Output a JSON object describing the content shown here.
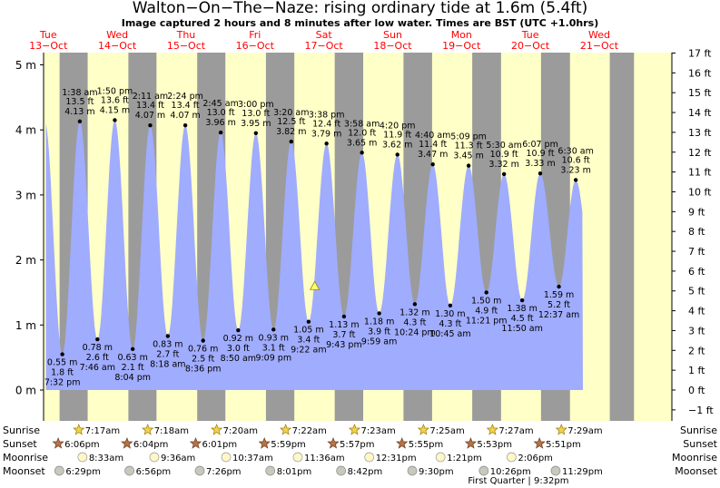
{
  "page": {
    "title": "Walton−On−The−Naze: rising  ordinary tide at 1.6m (5.4ft)",
    "subtitle": "Image captured 2 hours and 8 minutes after low water. Times are BST (UTC +1.0hrs)"
  },
  "colors": {
    "tide_fill": "#a0acfd",
    "day_band": "#ffffc8",
    "night_band": "#9b9b9b",
    "day_header": "#ff0000",
    "current_marker": "#ffff66"
  },
  "chart_data": {
    "type": "area",
    "title": "Walton−On−The−Naze: rising  ordinary tide at 1.6m (5.4ft)",
    "xlabel": "",
    "ylabel": "",
    "left_axis": {
      "unit": "m",
      "ylim": [
        -0.5,
        5.3
      ],
      "ticks": [
        "5 m",
        "4 m",
        "3 m",
        "2 m",
        "1 m",
        "0 m"
      ],
      "tick_values": [
        5,
        4,
        3,
        2,
        1,
        0
      ]
    },
    "right_axis": {
      "unit": "ft",
      "ticks": [
        "17 ft",
        "16 ft",
        "15 ft",
        "14 ft",
        "13 ft",
        "12 ft",
        "11 ft",
        "10 ft",
        "9 ft",
        "8 ft",
        "7 ft",
        "6 ft",
        "5 ft",
        "4 ft",
        "3 ft",
        "2 ft",
        "1 ft",
        "0 ft",
        "−1 ft"
      ],
      "tick_values": [
        17,
        16,
        15,
        14,
        13,
        12,
        11,
        10,
        9,
        8,
        7,
        6,
        5,
        4,
        3,
        2,
        1,
        0,
        -1
      ]
    },
    "grid": false,
    "x_time_range_hours": [
      -5,
      214
    ],
    "days": [
      {
        "weekday": "Tue",
        "date": "13−Oct",
        "t": -3.33
      },
      {
        "weekday": "Wed",
        "date": "14−Oct",
        "t": 20.67
      },
      {
        "weekday": "Thu",
        "date": "15−Oct",
        "t": 44.67
      },
      {
        "weekday": "Fri",
        "date": "16−Oct",
        "t": 68.67
      },
      {
        "weekday": "Sat",
        "date": "17−Oct",
        "t": 92.67
      },
      {
        "weekday": "Sun",
        "date": "18−Oct",
        "t": 116.67
      },
      {
        "weekday": "Mon",
        "date": "19−Oct",
        "t": 140.67
      },
      {
        "weekday": "Tue",
        "date": "20−Oct",
        "t": 164.67
      },
      {
        "weekday": "Wed",
        "date": "21−Oct",
        "t": 188.67
      }
    ],
    "night_intervals": [
      [
        0.58,
        10.37
      ],
      [
        24.56,
        34.35
      ],
      [
        48.54,
        58.37
      ],
      [
        72.51,
        82.4
      ],
      [
        96.48,
        106.4
      ],
      [
        120.45,
        130.42
      ],
      [
        144.41,
        154.45
      ],
      [
        168.39,
        178.48
      ],
      [
        192.36,
        200.8
      ]
    ],
    "tides": [
      {
        "type": "low",
        "t": 1.53,
        "m": 0.55,
        "time": "7:32 pm",
        "ft": "1.8 ft",
        "height": "0.55 m"
      },
      {
        "type": "high",
        "t": 7.63,
        "m": 4.13,
        "time": "1:38 am",
        "ft": "13.5 ft",
        "height": "4.13 m"
      },
      {
        "type": "low",
        "t": 13.77,
        "m": 0.78,
        "time": "7:46 am",
        "ft": "2.6 ft",
        "height": "0.78 m"
      },
      {
        "type": "high",
        "t": 19.83,
        "m": 4.15,
        "time": "1:50 pm",
        "ft": "13.6 ft",
        "height": "4.15 m"
      },
      {
        "type": "low",
        "t": 26.07,
        "m": 0.63,
        "time": "8:04 pm",
        "ft": "2.1 ft",
        "height": "0.63 m"
      },
      {
        "type": "high",
        "t": 32.18,
        "m": 4.07,
        "time": "2:11 am",
        "ft": "13.4 ft",
        "height": "4.07 m"
      },
      {
        "type": "low",
        "t": 38.3,
        "m": 0.83,
        "time": "8:18 am",
        "ft": "2.7 ft",
        "height": "0.83 m"
      },
      {
        "type": "high",
        "t": 44.4,
        "m": 4.07,
        "time": "2:24 pm",
        "ft": "13.4 ft",
        "height": "4.07 m"
      },
      {
        "type": "low",
        "t": 50.6,
        "m": 0.76,
        "time": "8:36 pm",
        "ft": "2.5 ft",
        "height": "0.76 m"
      },
      {
        "type": "high",
        "t": 56.75,
        "m": 3.96,
        "time": "2:45 am",
        "ft": "13.0 ft",
        "height": "3.96 m"
      },
      {
        "type": "low",
        "t": 62.83,
        "m": 0.92,
        "time": "8:50 am",
        "ft": "3.0 ft",
        "height": "0.92 m"
      },
      {
        "type": "high",
        "t": 69.0,
        "m": 3.95,
        "time": "3:00 pm",
        "ft": "13.0 ft",
        "height": "3.95 m"
      },
      {
        "type": "low",
        "t": 75.15,
        "m": 0.93,
        "time": "9:09 pm",
        "ft": "3.1 ft",
        "height": "0.93 m"
      },
      {
        "type": "high",
        "t": 81.33,
        "m": 3.82,
        "time": "3:20 am",
        "ft": "12.5 ft",
        "height": "3.82 m"
      },
      {
        "type": "low",
        "t": 87.37,
        "m": 1.05,
        "time": "9:22 am",
        "ft": "3.4 ft",
        "height": "1.05 m"
      },
      {
        "type": "high",
        "t": 93.63,
        "m": 3.79,
        "time": "3:38 pm",
        "ft": "12.4 ft",
        "height": "3.79 m"
      },
      {
        "type": "low",
        "t": 99.72,
        "m": 1.13,
        "time": "9:43 pm",
        "ft": "3.7 ft",
        "height": "1.13 m"
      },
      {
        "type": "high",
        "t": 105.97,
        "m": 3.65,
        "time": "3:58 am",
        "ft": "12.0 ft",
        "height": "3.65 m"
      },
      {
        "type": "low",
        "t": 111.98,
        "m": 1.18,
        "time": "9:59 am",
        "ft": "3.9 ft",
        "height": "1.18 m"
      },
      {
        "type": "high",
        "t": 118.33,
        "m": 3.62,
        "time": "4:20 pm",
        "ft": "11.9 ft",
        "height": "3.62 m"
      },
      {
        "type": "low",
        "t": 124.4,
        "m": 1.32,
        "time": "10:24 pm",
        "ft": "4.3 ft",
        "height": "1.32 m"
      },
      {
        "type": "high",
        "t": 130.67,
        "m": 3.47,
        "time": "4:40 am",
        "ft": "11.4 ft",
        "height": "3.47 m"
      },
      {
        "type": "low",
        "t": 136.75,
        "m": 1.3,
        "time": "10:45 am",
        "ft": "4.3 ft",
        "height": "1.30 m"
      },
      {
        "type": "high",
        "t": 143.15,
        "m": 3.45,
        "time": "5:09 pm",
        "ft": "11.3 ft",
        "height": "3.45 m"
      },
      {
        "type": "low",
        "t": 149.35,
        "m": 1.5,
        "time": "11:21 pm",
        "ft": "4.9 ft",
        "height": "1.50 m"
      },
      {
        "type": "high",
        "t": 155.5,
        "m": 3.32,
        "time": "5:30 am",
        "ft": "10.9 ft",
        "height": "3.32 m"
      },
      {
        "type": "low",
        "t": 161.83,
        "m": 1.38,
        "time": "11:50 am",
        "ft": "4.5 ft",
        "height": "1.38 m"
      },
      {
        "type": "high",
        "t": 168.12,
        "m": 3.33,
        "time": "6:07 pm",
        "ft": "10.9 ft",
        "height": "3.33 m"
      },
      {
        "type": "low",
        "t": 174.62,
        "m": 1.59,
        "time": "12:37 am",
        "ft": "5.2 ft",
        "height": "1.59 m"
      },
      {
        "type": "high",
        "t": 180.5,
        "m": 3.23,
        "time": "6:30 am",
        "ft": "10.6 ft",
        "height": "3.23 m"
      }
    ],
    "current": {
      "t": 89.5,
      "m": 1.6
    },
    "sun_moon": {
      "rows": [
        "Sunrise",
        "Sunset",
        "Moonrise",
        "Moonset"
      ],
      "sunrise": [
        {
          "t": 7.28,
          "time": "7:17am"
        },
        {
          "t": 31.3,
          "time": "7:18am"
        },
        {
          "t": 55.33,
          "time": "7:20am"
        },
        {
          "t": 79.37,
          "time": "7:22am"
        },
        {
          "t": 103.38,
          "time": "7:23am"
        },
        {
          "t": 127.42,
          "time": "7:25am"
        },
        {
          "t": 151.45,
          "time": "7:27am"
        },
        {
          "t": 175.48,
          "time": "7:29am"
        }
      ],
      "sunset": [
        {
          "t": 0.1,
          "time": "6:06pm"
        },
        {
          "t": 24.07,
          "time": "6:04pm"
        },
        {
          "t": 48.02,
          "time": "6:01pm"
        },
        {
          "t": 71.98,
          "time": "5:59pm"
        },
        {
          "t": 95.95,
          "time": "5:57pm"
        },
        {
          "t": 119.92,
          "time": "5:55pm"
        },
        {
          "t": 143.88,
          "time": "5:53pm"
        },
        {
          "t": 167.85,
          "time": "5:51pm"
        }
      ],
      "moonrise": [
        {
          "t": 8.55,
          "time": "8:33am"
        },
        {
          "t": 33.6,
          "time": "9:36am"
        },
        {
          "t": 58.62,
          "time": "10:37am"
        },
        {
          "t": 83.6,
          "time": "11:36am"
        },
        {
          "t": 108.52,
          "time": "12:31pm"
        },
        {
          "t": 133.35,
          "time": "1:21pm"
        },
        {
          "t": 158.1,
          "time": "2:06pm"
        }
      ],
      "moonset": [
        {
          "t": 0.48,
          "time": "6:29pm"
        },
        {
          "t": 24.93,
          "time": "6:56pm"
        },
        {
          "t": 49.43,
          "time": "7:26pm"
        },
        {
          "t": 74.02,
          "time": "8:01pm"
        },
        {
          "t": 98.7,
          "time": "8:42pm"
        },
        {
          "t": 123.5,
          "time": "9:30pm"
        },
        {
          "t": 148.43,
          "time": "10:26pm"
        },
        {
          "t": 173.48,
          "time": "11:29pm"
        }
      ],
      "moon_phase_note": "First Quarter | 9:32pm"
    }
  }
}
